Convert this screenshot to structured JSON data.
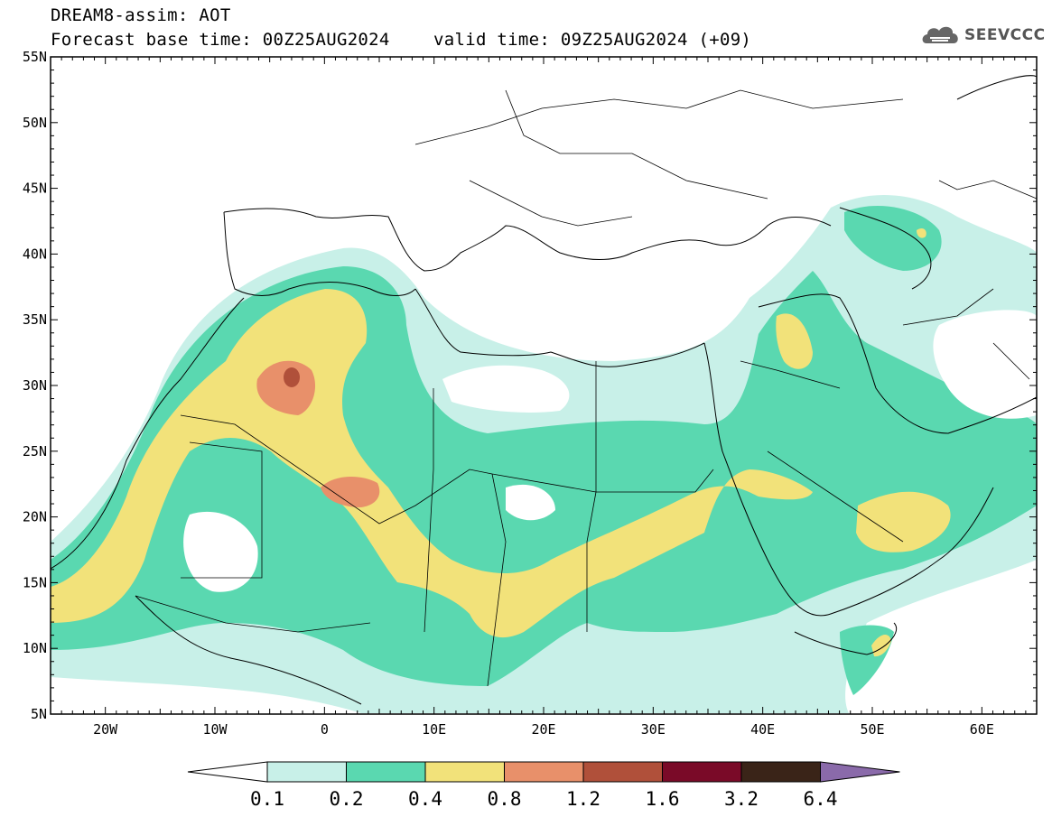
{
  "header": {
    "title": "DREAM8-assim: AOT",
    "base_time": "Forecast base time: 00Z25AUG2024",
    "valid_time": "valid time: 09Z25AUG2024 (+09)",
    "logo_text": "SEEVCCC"
  },
  "map": {
    "lon_range": [
      -25,
      65
    ],
    "lat_range": [
      5,
      55
    ],
    "lat_ticks": [
      "5N",
      "10N",
      "15N",
      "20N",
      "25N",
      "30N",
      "35N",
      "40N",
      "45N",
      "50N",
      "55N"
    ],
    "lon_ticks": [
      "20W",
      "10W",
      "0",
      "10E",
      "20E",
      "30E",
      "40E",
      "50E",
      "60E"
    ]
  },
  "legend": {
    "levels": [
      "0.1",
      "0.2",
      "0.4",
      "0.8",
      "1.2",
      "1.6",
      "3.2",
      "6.4"
    ],
    "colors": [
      "#ffffff",
      "#c8f0e8",
      "#5ad8b0",
      "#f2e27a",
      "#e8906a",
      "#b0503a",
      "#7a0a28",
      "#3a2418",
      "#8a6aaa"
    ]
  }
}
